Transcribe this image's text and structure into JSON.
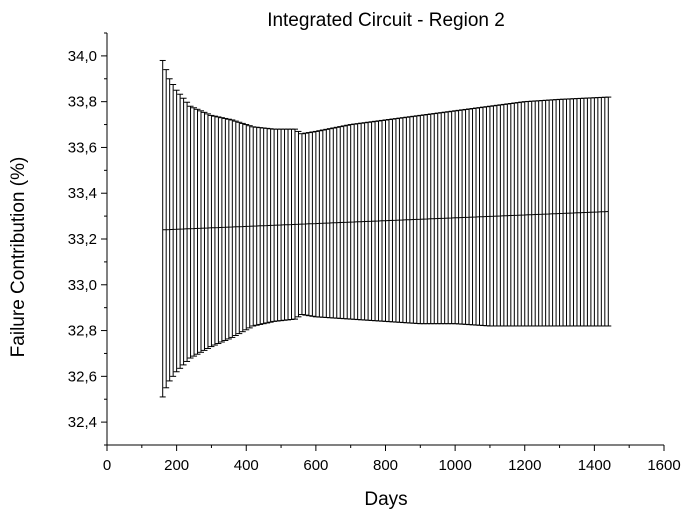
{
  "chart_data": {
    "type": "line",
    "title": "Integrated Circuit - Region 2",
    "xlabel": "Days",
    "ylabel": "Failure Contribution (%)",
    "xlim": [
      0,
      1600
    ],
    "ylim": [
      32.3,
      34.1
    ],
    "x_ticks": [
      0,
      200,
      400,
      600,
      800,
      1000,
      1200,
      1400,
      1600
    ],
    "x_tick_labels": [
      "0",
      "200",
      "400",
      "600",
      "800",
      "1000",
      "1200",
      "1400",
      "1600"
    ],
    "y_ticks": [
      32.4,
      32.6,
      32.8,
      33.0,
      33.2,
      33.4,
      33.6,
      33.8,
      34.0
    ],
    "y_tick_labels": [
      "32,4",
      "32,6",
      "32,8",
      "33,0",
      "33,2",
      "33,4",
      "33,6",
      "33,8",
      "34,0"
    ],
    "grid": false,
    "error_bars": true,
    "series": [
      {
        "x_start": 160,
        "x_end": 1440,
        "x_step": 10,
        "mean_start": 33.24,
        "mean_end": 33.32,
        "upper_points": [
          [
            160,
            33.98
          ],
          [
            170,
            33.94
          ],
          [
            180,
            33.9
          ],
          [
            200,
            33.85
          ],
          [
            240,
            33.78
          ],
          [
            300,
            33.74
          ],
          [
            360,
            33.72
          ],
          [
            420,
            33.69
          ],
          [
            480,
            33.68
          ],
          [
            540,
            33.68
          ],
          [
            560,
            33.66
          ],
          [
            600,
            33.67
          ],
          [
            700,
            33.7
          ],
          [
            800,
            33.72
          ],
          [
            900,
            33.74
          ],
          [
            1000,
            33.76
          ],
          [
            1100,
            33.78
          ],
          [
            1200,
            33.8
          ],
          [
            1300,
            33.81
          ],
          [
            1440,
            33.82
          ]
        ],
        "lower_points": [
          [
            160,
            32.51
          ],
          [
            170,
            32.55
          ],
          [
            180,
            32.58
          ],
          [
            200,
            32.62
          ],
          [
            240,
            32.68
          ],
          [
            300,
            32.73
          ],
          [
            360,
            32.77
          ],
          [
            420,
            32.82
          ],
          [
            480,
            32.84
          ],
          [
            540,
            32.85
          ],
          [
            560,
            32.87
          ],
          [
            600,
            32.86
          ],
          [
            700,
            32.85
          ],
          [
            800,
            32.84
          ],
          [
            900,
            32.83
          ],
          [
            1000,
            32.83
          ],
          [
            1100,
            32.82
          ],
          [
            1200,
            32.82
          ],
          [
            1300,
            32.82
          ],
          [
            1440,
            32.82
          ]
        ],
        "color": "#000000"
      }
    ]
  }
}
